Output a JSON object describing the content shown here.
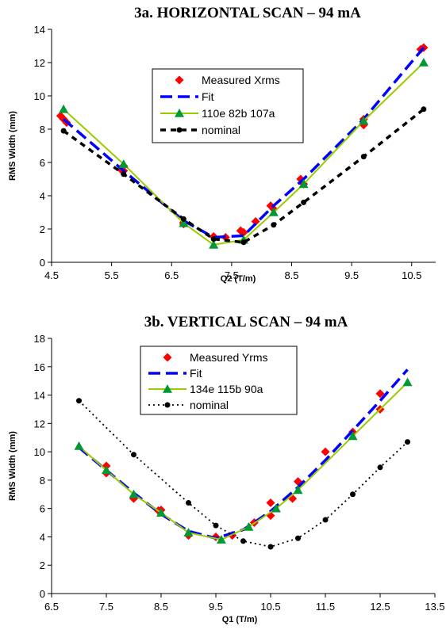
{
  "chart_data": [
    {
      "type": "line",
      "title": "3a. HORIZONTAL SCAN – 94 mA",
      "xlabel": "Q2 (T/m)",
      "ylabel": "RMS Width (mm)",
      "xlim": [
        4.5,
        10.9
      ],
      "ylim": [
        0,
        14
      ],
      "xticks": [
        "4.5",
        "5.5",
        "6.5",
        "7.5",
        "8.5",
        "9.5",
        "10.5"
      ],
      "yticks": [
        "0",
        "2",
        "4",
        "6",
        "8",
        "10",
        "12",
        "14"
      ],
      "grid": false,
      "legend_position": "top-center",
      "series": [
        {
          "name": "Measured Xrms",
          "color": "#ff0000",
          "marker": "diamond",
          "line": "none",
          "points": [
            [
              4.65,
              8.8
            ],
            [
              4.7,
              8.6
            ],
            [
              4.75,
              8.4
            ],
            [
              5.65,
              5.6
            ],
            [
              5.7,
              5.8
            ],
            [
              5.7,
              5.5
            ],
            [
              6.7,
              2.4
            ],
            [
              6.7,
              2.3
            ],
            [
              7.2,
              1.55
            ],
            [
              7.4,
              1.5
            ],
            [
              7.65,
              1.9
            ],
            [
              7.7,
              1.8
            ],
            [
              7.9,
              2.45
            ],
            [
              8.15,
              3.4
            ],
            [
              8.2,
              3.2
            ],
            [
              8.65,
              5.0
            ],
            [
              8.7,
              4.7
            ],
            [
              9.7,
              8.6
            ],
            [
              9.7,
              8.25
            ],
            [
              10.65,
              12.8
            ],
            [
              10.7,
              12.9
            ]
          ]
        },
        {
          "name": "Fit",
          "color": "#0000ff",
          "dash": "long",
          "line": "thick",
          "points": [
            [
              4.7,
              8.6
            ],
            [
              5.7,
              5.5
            ],
            [
              6.7,
              2.5
            ],
            [
              7.2,
              1.5
            ],
            [
              7.7,
              1.6
            ],
            [
              8.2,
              3.4
            ],
            [
              8.7,
              5.0
            ],
            [
              9.7,
              8.6
            ],
            [
              10.7,
              12.9
            ]
          ]
        },
        {
          "name": "110e 82b 107a",
          "color": "#99cc00",
          "marker": "triangle",
          "markerColor": "#009933",
          "points": [
            [
              4.7,
              9.2
            ],
            [
              5.7,
              5.9
            ],
            [
              6.7,
              2.35
            ],
            [
              7.2,
              1.05
            ],
            [
              7.7,
              1.35
            ],
            [
              8.2,
              3.0
            ],
            [
              8.7,
              4.7
            ],
            [
              9.7,
              8.5
            ],
            [
              10.7,
              12.0
            ]
          ]
        },
        {
          "name": "nominal",
          "color": "#000000",
          "dash": "short",
          "marker": "dot",
          "line": "thick",
          "points": [
            [
              4.7,
              7.9
            ],
            [
              5.7,
              5.3
            ],
            [
              6.7,
              2.6
            ],
            [
              7.2,
              1.4
            ],
            [
              7.7,
              1.2
            ],
            [
              8.2,
              2.25
            ],
            [
              8.7,
              3.6
            ],
            [
              9.7,
              6.35
            ],
            [
              10.7,
              9.2
            ]
          ]
        }
      ]
    },
    {
      "type": "line",
      "title": "3b. VERTICAL SCAN – 94 mA",
      "xlabel": "Q1 (T/m)",
      "ylabel": "RMS Width (mm)",
      "xlim": [
        6.5,
        13.5
      ],
      "ylim": [
        0,
        18
      ],
      "xticks": [
        "6.5",
        "7.5",
        "8.5",
        "9.5",
        "10.5",
        "11.5",
        "12.5",
        "13.5"
      ],
      "yticks": [
        "0",
        "2",
        "4",
        "6",
        "8",
        "10",
        "12",
        "14",
        "16",
        "18"
      ],
      "grid": false,
      "legend_position": "top-center",
      "series": [
        {
          "name": "Measured Yrms",
          "color": "#ff0000",
          "marker": "diamond",
          "line": "none",
          "points": [
            [
              7.5,
              9.0
            ],
            [
              7.5,
              8.5
            ],
            [
              8.0,
              6.7
            ],
            [
              8.5,
              5.9
            ],
            [
              8.45,
              5.85
            ],
            [
              9.0,
              4.1
            ],
            [
              9.5,
              4.0
            ],
            [
              9.8,
              4.1
            ],
            [
              10.2,
              5.0
            ],
            [
              10.5,
              6.4
            ],
            [
              10.5,
              5.5
            ],
            [
              10.9,
              6.7
            ],
            [
              11.0,
              7.9
            ],
            [
              11.5,
              10.0
            ],
            [
              12.0,
              11.4
            ],
            [
              12.5,
              13.0
            ],
            [
              12.5,
              14.1
            ]
          ]
        },
        {
          "name": "Fit",
          "color": "#0000ff",
          "dash": "long",
          "line": "thick",
          "points": [
            [
              7.0,
              10.3
            ],
            [
              7.5,
              8.7
            ],
            [
              8.0,
              7.1
            ],
            [
              8.5,
              5.6
            ],
            [
              9.0,
              4.4
            ],
            [
              9.5,
              3.9
            ],
            [
              10.0,
              4.5
            ],
            [
              10.5,
              5.8
            ],
            [
              11.0,
              7.5
            ],
            [
              11.5,
              9.4
            ],
            [
              12.0,
              11.5
            ],
            [
              12.5,
              13.6
            ],
            [
              13.0,
              15.8
            ]
          ]
        },
        {
          "name": "134e 115b 90a",
          "color": "#99cc00",
          "marker": "triangle",
          "markerColor": "#009933",
          "points": [
            [
              7.0,
              10.4
            ],
            [
              7.5,
              8.7
            ],
            [
              8.0,
              7.0
            ],
            [
              8.5,
              5.7
            ],
            [
              9.0,
              4.3
            ],
            [
              9.6,
              3.8
            ],
            [
              10.1,
              4.7
            ],
            [
              10.6,
              6.0
            ],
            [
              11.0,
              7.3
            ],
            [
              12.0,
              11.1
            ],
            [
              13.0,
              14.9
            ]
          ]
        },
        {
          "name": "nominal",
          "color": "#000000",
          "dash": "dotted",
          "marker": "dot",
          "line": "thin",
          "points": [
            [
              7.0,
              13.6
            ],
            [
              8.0,
              9.8
            ],
            [
              9.0,
              6.4
            ],
            [
              9.5,
              4.8
            ],
            [
              10.0,
              3.7
            ],
            [
              10.5,
              3.3
            ],
            [
              11.0,
              3.9
            ],
            [
              11.5,
              5.2
            ],
            [
              12.0,
              7.0
            ],
            [
              12.5,
              8.9
            ],
            [
              13.0,
              10.7
            ]
          ]
        }
      ]
    }
  ]
}
